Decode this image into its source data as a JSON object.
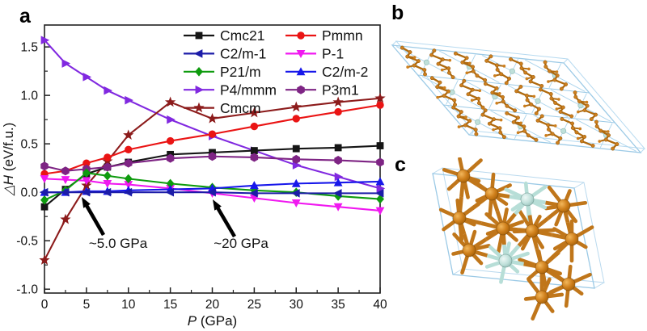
{
  "figure": {
    "a_label": "a",
    "b_label": "b",
    "c_label": "c"
  },
  "chart_data": {
    "type": "line",
    "title": "",
    "xlabel": "P (GPa)",
    "ylabel": "△H (eV/f.u.)",
    "xlim": [
      0,
      40
    ],
    "ylim": [
      -1.04,
      1.726
    ],
    "xticks": [
      "0",
      "5",
      "10",
      "15",
      "20",
      "25",
      "30",
      "35",
      "40"
    ],
    "yticks": [
      "-1.0",
      "-0.5",
      "0.0",
      "0.5",
      "1.0",
      "1.5"
    ],
    "grid": false,
    "legend_position": "top-inside-two-columns-no-frame",
    "legend_columns": [
      [
        "Cmc21",
        "C2/m-1",
        "P21/m",
        "P4/mmm",
        "Cmcm"
      ],
      [
        "Pmmn",
        "P-1",
        "C2/m-2",
        "P3m1"
      ]
    ],
    "x": [
      0,
      2.5,
      5,
      7.5,
      10,
      15,
      20,
      25,
      30,
      35,
      40
    ],
    "series": [
      {
        "name": "Cmc21",
        "color": "#151515",
        "marker": "square",
        "values": [
          -0.15,
          0.03,
          0.19,
          0.26,
          0.31,
          0.39,
          0.41,
          0.43,
          0.45,
          0.46,
          0.48
        ]
      },
      {
        "name": "C2/m-1",
        "color": "#1c1ca8",
        "marker": "triangle-left",
        "values": [
          0.0,
          0.0,
          0.0,
          0.0,
          0.0,
          0.0,
          0.0,
          -0.01,
          -0.01,
          -0.01,
          -0.01
        ]
      },
      {
        "name": "P21/m",
        "color": "#0e9b0e",
        "marker": "diamond",
        "values": [
          -0.08,
          0.02,
          0.2,
          0.17,
          0.14,
          0.09,
          0.05,
          0.02,
          0.0,
          -0.04,
          -0.07
        ]
      },
      {
        "name": "P4/mmm",
        "color": "#8129e0",
        "marker": "triangle-right",
        "values": [
          1.57,
          1.33,
          1.19,
          1.05,
          0.95,
          0.75,
          0.58,
          0.43,
          0.28,
          0.16,
          0.04
        ]
      },
      {
        "name": "Cmcm",
        "color": "#8c1b1b",
        "marker": "star",
        "values": [
          -0.7,
          -0.28,
          0.07,
          0.32,
          0.59,
          0.93,
          0.76,
          0.82,
          0.88,
          0.93,
          0.97
        ]
      },
      {
        "name": "Pmmn",
        "color": "#ea1414",
        "marker": "circle",
        "values": [
          0.19,
          0.22,
          0.3,
          0.36,
          0.44,
          0.53,
          0.6,
          0.68,
          0.76,
          0.83,
          0.9
        ]
      },
      {
        "name": "P-1",
        "color": "#f018f0",
        "marker": "triangle-down",
        "values": [
          0.14,
          0.13,
          0.12,
          0.09,
          0.08,
          0.04,
          -0.01,
          -0.06,
          -0.11,
          -0.15,
          -0.19
        ]
      },
      {
        "name": "C2/m-2",
        "color": "#1717ea",
        "marker": "triangle-up",
        "values": [
          0.0,
          0.0,
          0.01,
          0.01,
          0.02,
          0.03,
          0.04,
          0.07,
          0.09,
          0.1,
          0.11
        ]
      },
      {
        "name": "P3m1",
        "color": "#7e2484",
        "marker": "hexagon",
        "values": [
          0.27,
          0.22,
          0.24,
          0.26,
          0.3,
          0.35,
          0.37,
          0.36,
          0.34,
          0.33,
          0.31
        ]
      }
    ],
    "annotations": [
      {
        "text": "~5.0 GPa"
      },
      {
        "text": "~20 GPa"
      }
    ]
  },
  "structures": {
    "b_atom_colors": {
      "orange": "#cd7f1e",
      "teal": "#bfe0da",
      "cell": "#9ccae6"
    },
    "c_atom_colors": {
      "orange": "#cf7f1b",
      "teal": "#bfe0da",
      "cell": "#9ccae6"
    }
  }
}
